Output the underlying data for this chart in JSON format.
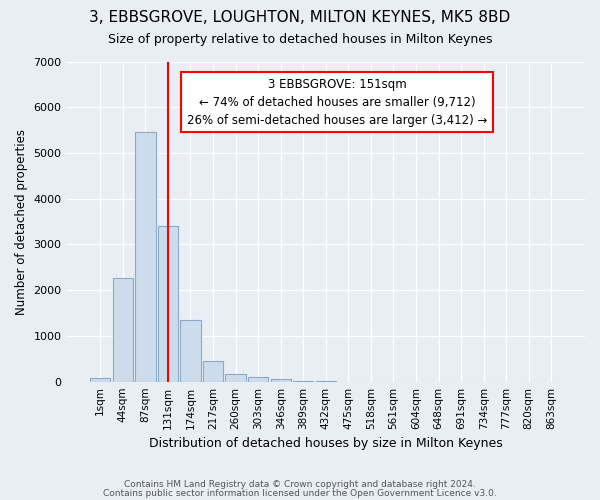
{
  "title": "3, EBBSGROVE, LOUGHTON, MILTON KEYNES, MK5 8BD",
  "subtitle": "Size of property relative to detached houses in Milton Keynes",
  "xlabel": "Distribution of detached houses by size in Milton Keynes",
  "ylabel": "Number of detached properties",
  "bar_labels": [
    "1sqm",
    "44sqm",
    "87sqm",
    "131sqm",
    "174sqm",
    "217sqm",
    "260sqm",
    "303sqm",
    "346sqm",
    "389sqm",
    "432sqm",
    "475sqm",
    "518sqm",
    "561sqm",
    "604sqm",
    "648sqm",
    "691sqm",
    "734sqm",
    "777sqm",
    "820sqm",
    "863sqm"
  ],
  "bar_values": [
    75,
    2270,
    5450,
    3400,
    1350,
    450,
    175,
    100,
    50,
    10,
    5,
    0,
    0,
    0,
    0,
    0,
    0,
    0,
    0,
    0,
    0
  ],
  "bar_color": "#cddcec",
  "bar_edge_color": "#8aaac8",
  "ylim": [
    0,
    7000
  ],
  "yticks": [
    0,
    1000,
    2000,
    3000,
    4000,
    5000,
    6000,
    7000
  ],
  "red_line_x": 3.0,
  "annotation_text": "3 EBBSGROVE: 151sqm\n← 74% of detached houses are smaller (9,712)\n26% of semi-detached houses are larger (3,412) →",
  "footer_line1": "Contains HM Land Registry data © Crown copyright and database right 2024.",
  "footer_line2": "Contains public sector information licensed under the Open Government Licence v3.0.",
  "bg_color": "#e8eef4",
  "grid_color": "#ffffff",
  "title_fontsize": 11,
  "subtitle_fontsize": 9,
  "tick_fontsize": 7.5,
  "ylabel_fontsize": 8.5,
  "xlabel_fontsize": 9,
  "footer_fontsize": 6.5,
  "annot_fontsize": 8.5
}
